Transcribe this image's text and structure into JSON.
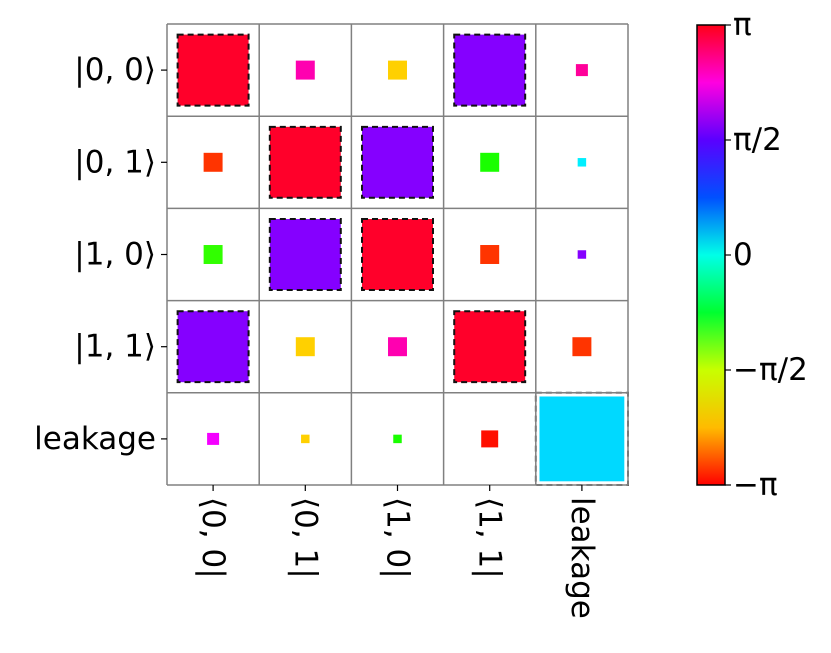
{
  "chart_data": {
    "type": "heatmap",
    "subtype": "hinton-phase",
    "title": "",
    "row_labels": [
      "|0, 0⟩",
      "|0, 1⟩",
      "|1, 0⟩",
      "|1, 1⟩",
      "leakage"
    ],
    "col_labels": [
      "⟨0, 0|",
      "⟨0, 1|",
      "⟨1, 0|",
      "⟨1, 1|",
      "leakage"
    ],
    "magnitude": [
      [
        0.7,
        0.05,
        0.05,
        0.7,
        0.02
      ],
      [
        0.05,
        0.7,
        0.7,
        0.05,
        0.01
      ],
      [
        0.05,
        0.7,
        0.7,
        0.05,
        0.01
      ],
      [
        0.7,
        0.05,
        0.05,
        0.7,
        0.05
      ],
      [
        0.02,
        0.01,
        0.01,
        0.04,
        1.0
      ]
    ],
    "phase_fraction_of_pi": [
      [
        1.0,
        0.82,
        -0.72,
        0.55,
        0.85
      ],
      [
        -0.93,
        1.0,
        0.55,
        -0.35,
        0.05
      ],
      [
        -0.38,
        0.55,
        1.0,
        -0.93,
        0.55
      ],
      [
        0.55,
        -0.72,
        0.82,
        1.0,
        -0.93
      ],
      [
        0.7,
        -0.72,
        -0.35,
        -0.98,
        0.08
      ]
    ],
    "ideal_mask": [
      [
        true,
        false,
        false,
        true,
        false
      ],
      [
        false,
        true,
        true,
        false,
        false
      ],
      [
        false,
        true,
        true,
        false,
        false
      ],
      [
        true,
        false,
        false,
        true,
        false
      ],
      [
        false,
        false,
        false,
        false,
        true
      ]
    ],
    "colorbar": {
      "colormap": "hsv",
      "range": [
        "-π",
        "π"
      ],
      "tick_labels": [
        "π",
        "π/2",
        "0",
        "−π/2",
        "−π"
      ],
      "tick_values": [
        1,
        0.5,
        0,
        -0.5,
        -1
      ]
    },
    "grid": true,
    "legend": "none"
  }
}
